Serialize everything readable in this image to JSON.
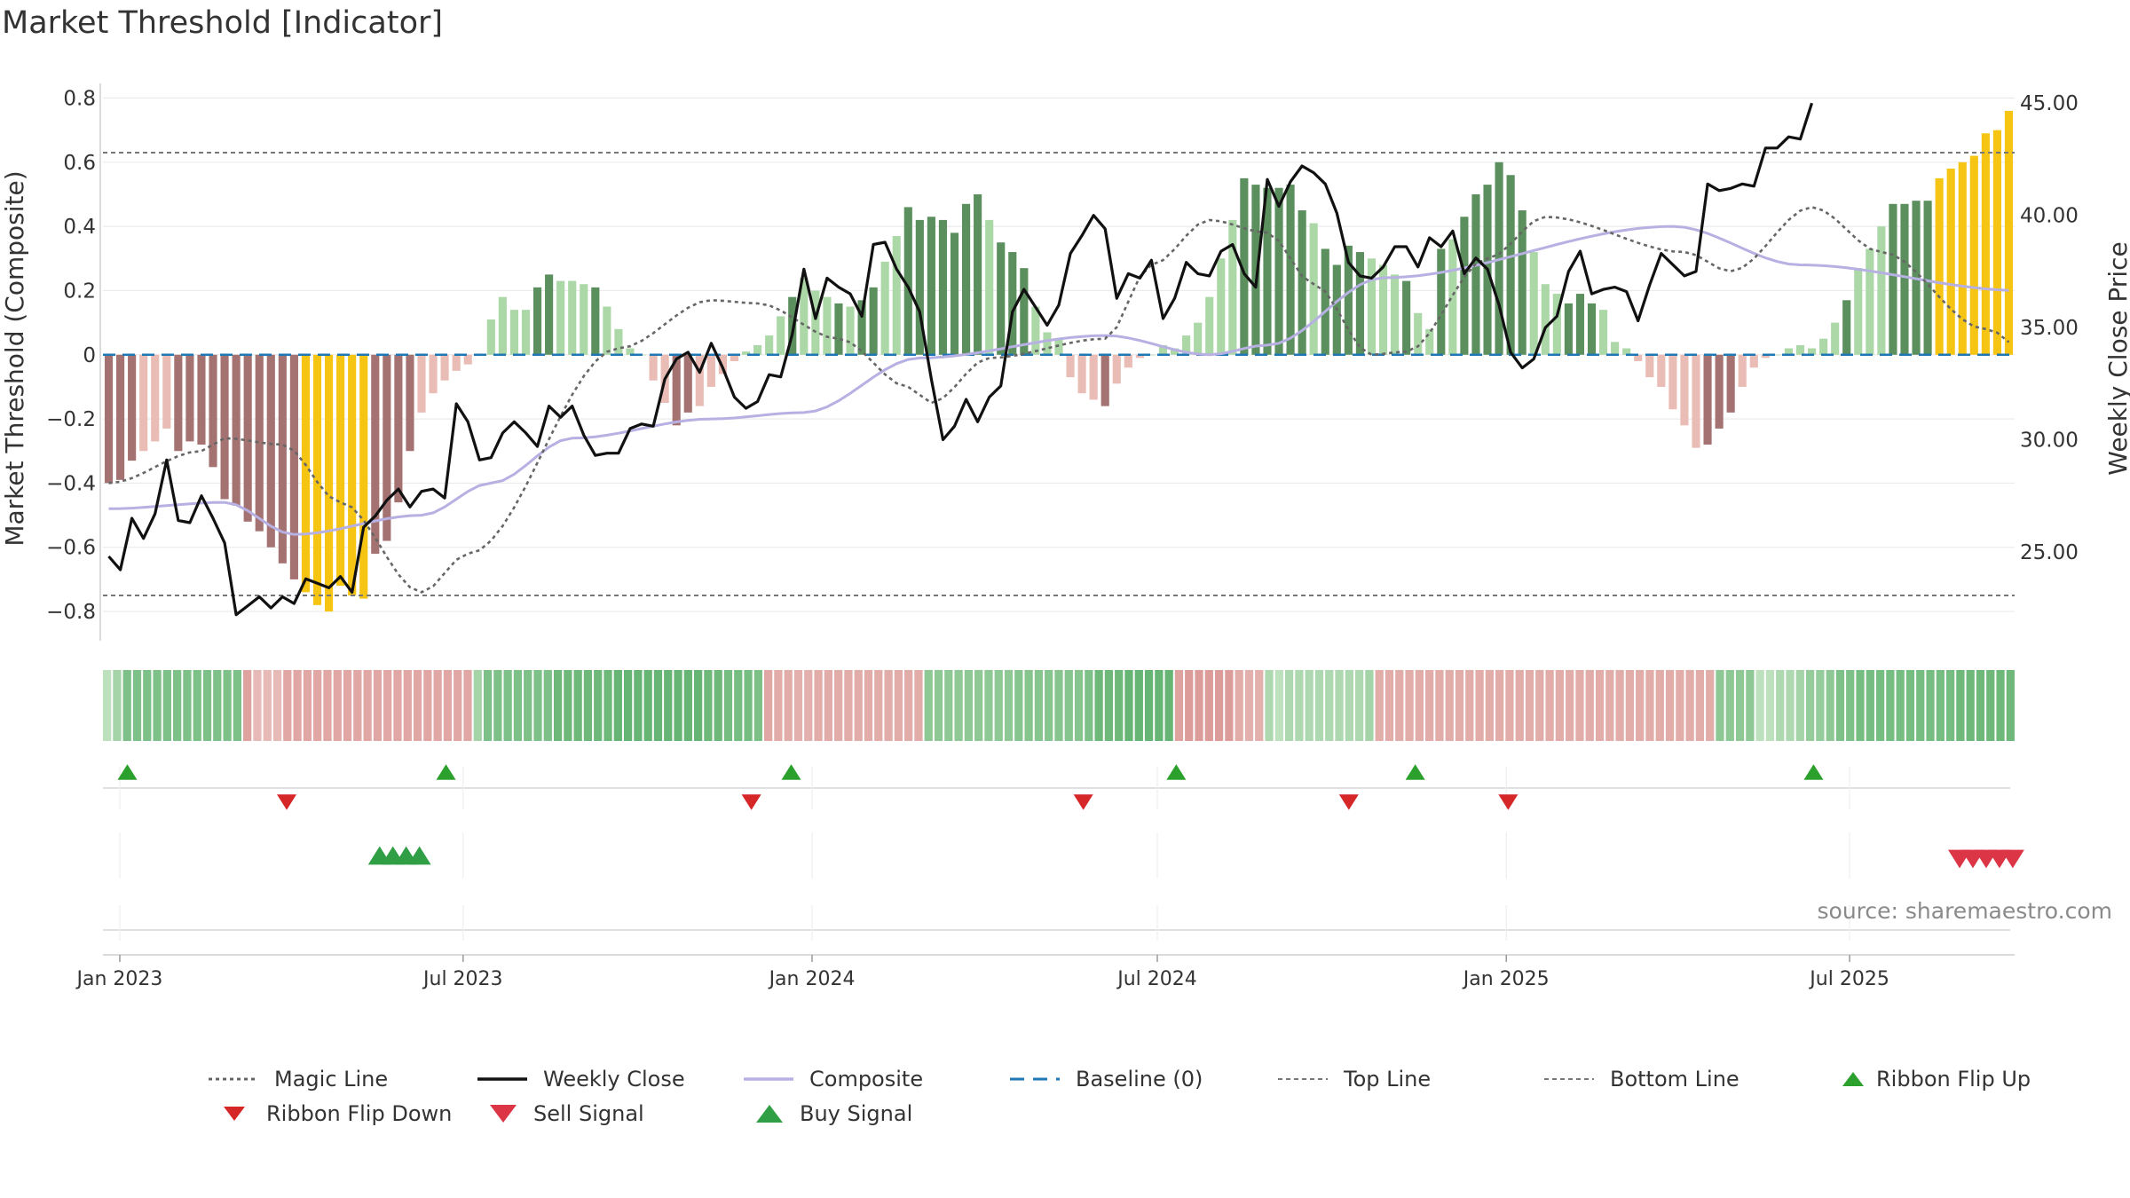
{
  "title": "Market Threshold [Indicator]",
  "source": "source: sharemaestro.com",
  "colors": {
    "posStrong": "#5b8f5d",
    "posWeak": "#acd8a8",
    "negStrong": "#a57272",
    "negWeak": "#e9bcb6",
    "extreme": "#f6c514",
    "closeLine": "#111111",
    "composite": "#b7b0e2",
    "magic": "#666666",
    "baseline": "#1f77b4",
    "threshold": "#777777",
    "buy": "#2ca02c",
    "sell": "#d62728"
  },
  "chart_data": {
    "type": "bar+line",
    "title": "Market Threshold [Indicator]",
    "ylabel": "Market Threshold (Composite)",
    "y2label": "Weekly Close Price",
    "ylim": [
      -0.88,
      0.84
    ],
    "y2lim": [
      21.2,
      45.8
    ],
    "yticks": [
      0.8,
      0.6,
      0.4,
      0.2,
      0,
      -0.2,
      -0.4,
      -0.6,
      -0.8
    ],
    "ytick_labels": [
      "0.8",
      "0.6",
      "0.4",
      "0.2",
      "0",
      "−0.2",
      "−0.4",
      "−0.6",
      "−0.8"
    ],
    "y2ticks": [
      45,
      40,
      35,
      30,
      25
    ],
    "y2tick_labels": [
      "45.00",
      "40.00",
      "35.00",
      "30.00",
      "25.00"
    ],
    "x_start": "2022-12-25",
    "x_end": "2025-09-26",
    "xticks": [
      {
        "date": "2023-01-01",
        "label": "Jan 2023"
      },
      {
        "date": "2023-07-01",
        "label": "Jul 2023"
      },
      {
        "date": "2024-01-01",
        "label": "Jan 2024"
      },
      {
        "date": "2024-07-01",
        "label": "Jul 2024"
      },
      {
        "date": "2025-01-01",
        "label": "Jan 2025"
      },
      {
        "date": "2025-07-01",
        "label": "Jul 2025"
      }
    ],
    "top_line": 0.63,
    "bottom_line": -0.75,
    "composite_keys": [
      [
        0,
        -0.48
      ],
      [
        10,
        -0.46
      ],
      [
        16,
        -0.56
      ],
      [
        27,
        -0.5
      ],
      [
        33,
        -0.4
      ],
      [
        40,
        -0.26
      ],
      [
        52,
        -0.2
      ],
      [
        60,
        -0.18
      ],
      [
        70,
        -0.01
      ],
      [
        86,
        0.06
      ],
      [
        95,
        0.0
      ],
      [
        100,
        0.03
      ],
      [
        110,
        0.24
      ],
      [
        135,
        0.4
      ],
      [
        146,
        0.28
      ],
      [
        165,
        0.2
      ],
      [
        175,
        0.18
      ],
      [
        190,
        0.42
      ]
    ],
    "magic_keys": [
      [
        0,
        -0.4
      ],
      [
        8,
        -0.3
      ],
      [
        10,
        -0.26
      ],
      [
        15,
        -0.28
      ],
      [
        20,
        -0.46
      ],
      [
        27,
        -0.74
      ],
      [
        31,
        -0.62
      ],
      [
        44,
        0.02
      ],
      [
        52,
        0.17
      ],
      [
        56,
        0.16
      ],
      [
        63,
        0.05
      ],
      [
        69,
        -0.1
      ],
      [
        71,
        -0.15
      ],
      [
        76,
        -0.01
      ],
      [
        86,
        0.05
      ],
      [
        90,
        0.28
      ],
      [
        95,
        0.42
      ],
      [
        100,
        0.38
      ],
      [
        104,
        0.22
      ],
      [
        109,
        0.0
      ],
      [
        112,
        0.01
      ],
      [
        119,
        0.3
      ],
      [
        124,
        0.43
      ],
      [
        136,
        0.32
      ],
      [
        140,
        0.26
      ],
      [
        147,
        0.46
      ],
      [
        153,
        0.32
      ],
      [
        162,
        0.08
      ],
      [
        170,
        -0.18
      ],
      [
        178,
        -0.02
      ],
      [
        184,
        0.02
      ],
      [
        190,
        0.43
      ],
      [
        196,
        0.62
      ]
    ],
    "series": [
      {
        "name": "Composite (bars)",
        "values": [
          -0.4,
          -0.39,
          -0.33,
          -0.3,
          -0.27,
          -0.23,
          -0.3,
          -0.27,
          -0.28,
          -0.35,
          -0.45,
          -0.47,
          -0.52,
          -0.55,
          -0.6,
          -0.65,
          -0.7,
          -0.74,
          -0.78,
          -0.8,
          -0.72,
          -0.75,
          -0.76,
          -0.62,
          -0.58,
          -0.46,
          -0.3,
          -0.18,
          -0.12,
          -0.08,
          -0.05,
          -0.03,
          0.0,
          0.11,
          0.18,
          0.14,
          0.14,
          0.21,
          0.25,
          0.23,
          0.23,
          0.22,
          0.21,
          0.15,
          0.08,
          0.02,
          0.0,
          -0.08,
          -0.15,
          -0.22,
          -0.18,
          -0.16,
          -0.1,
          -0.06,
          -0.02,
          0.01,
          0.03,
          0.06,
          0.12,
          0.18,
          0.24,
          0.2,
          0.18,
          0.16,
          0.15,
          0.17,
          0.21,
          0.29,
          0.37,
          0.46,
          0.42,
          0.43,
          0.42,
          0.38,
          0.47,
          0.5,
          0.42,
          0.35,
          0.32,
          0.27,
          0.15,
          0.07,
          0.05,
          -0.07,
          -0.12,
          -0.14,
          -0.16,
          -0.09,
          -0.04,
          -0.01,
          0.0,
          0.03,
          0.02,
          0.06,
          0.1,
          0.18,
          0.3,
          0.42,
          0.55,
          0.53,
          0.52,
          0.52,
          0.53,
          0.45,
          0.41,
          0.33,
          0.28,
          0.34,
          0.32,
          0.3,
          0.28,
          0.25,
          0.23,
          0.13,
          0.08,
          0.33,
          0.36,
          0.43,
          0.5,
          0.53,
          0.6,
          0.56,
          0.45,
          0.32,
          0.22,
          0.19,
          0.16,
          0.19,
          0.16,
          0.14,
          0.04,
          0.02,
          -0.02,
          -0.07,
          -0.1,
          -0.17,
          -0.22,
          -0.29,
          -0.28,
          -0.23,
          -0.18,
          -0.1,
          -0.04,
          -0.01,
          0.0,
          0.02,
          0.03,
          0.02,
          0.05,
          0.1,
          0.17,
          0.27,
          0.33,
          0.4,
          0.47,
          0.47,
          0.48,
          0.48,
          0.55,
          0.58,
          0.6,
          0.62,
          0.69,
          0.7,
          0.76
        ]
      },
      {
        "name": "Weekly Close",
        "values": [
          24.8,
          24.2,
          26.5,
          25.6,
          26.7,
          29.1,
          26.4,
          26.3,
          27.5,
          26.5,
          25.4,
          22.2,
          22.6,
          23.0,
          22.5,
          23.0,
          22.7,
          23.8,
          23.6,
          23.4,
          23.9,
          23.2,
          26.1,
          26.6,
          27.3,
          27.8,
          27.0,
          27.7,
          27.8,
          27.4,
          31.6,
          30.8,
          29.1,
          29.2,
          30.3,
          30.8,
          30.3,
          29.7,
          31.5,
          31.0,
          31.5,
          30.2,
          29.3,
          29.4,
          29.4,
          30.5,
          30.7,
          30.6,
          32.7,
          33.6,
          33.9,
          33.0,
          34.3,
          33.2,
          31.9,
          31.4,
          31.7,
          32.9,
          32.8,
          34.7,
          37.6,
          35.4,
          37.2,
          36.8,
          36.5,
          35.5,
          38.7,
          38.8,
          37.6,
          36.8,
          35.7,
          32.7,
          30.0,
          30.6,
          31.8,
          30.8,
          31.9,
          32.4,
          35.7,
          36.7,
          35.9,
          35.1,
          36.0,
          38.3,
          39.1,
          40.0,
          39.4,
          36.3,
          37.4,
          37.2,
          38.0,
          35.4,
          36.3,
          37.9,
          37.4,
          37.3,
          38.4,
          38.7,
          37.4,
          36.8,
          41.6,
          40.4,
          41.5,
          42.2,
          41.9,
          41.4,
          40.1,
          37.9,
          37.3,
          37.2,
          37.7,
          38.6,
          38.6,
          37.7,
          39.0,
          38.6,
          39.3,
          37.4,
          38.1,
          37.6,
          36.0,
          33.9,
          33.2,
          33.6,
          35.0,
          35.5,
          37.5,
          38.4,
          36.5,
          36.7,
          36.8,
          36.6,
          35.3,
          36.9,
          38.3,
          37.8,
          37.3,
          37.5,
          41.4,
          41.1,
          41.2,
          41.4,
          41.3,
          43.0,
          43.0,
          43.5,
          43.4,
          45.0
        ]
      },
      {
        "name": "Consensus Ribbon",
        "values": [
          0.2,
          0.35,
          0.6,
          0.6,
          0.6,
          0.6,
          0.6,
          0.6,
          0.6,
          0.6,
          0.6,
          0.6,
          0.6,
          0.6,
          0.6,
          0.35,
          0.35,
          0.35,
          0.55,
          0.55,
          0.55,
          0.55,
          0.55,
          0.55,
          0.55,
          0.55,
          0.55,
          0.55,
          0.55,
          0.55,
          0.55,
          0.55,
          0.55,
          0.55,
          0.55,
          0.55,
          0.55,
          0.35,
          0.6,
          0.6,
          0.6,
          0.6,
          0.6,
          0.6,
          0.6,
          0.7,
          0.7,
          0.7,
          0.7,
          0.7,
          0.7,
          0.75,
          0.75,
          0.75,
          0.75,
          0.75,
          0.75,
          0.75,
          0.75,
          0.75,
          0.7,
          0.7,
          0.65,
          0.65,
          0.65,
          0.6,
          0.55,
          0.5,
          0.5,
          0.45,
          0.45,
          0.5,
          0.5,
          0.5,
          0.5,
          0.5,
          0.5,
          0.5,
          0.5,
          0.5,
          0.5,
          0.5,
          0.5,
          0.5,
          0.5,
          0.5,
          0.5,
          0.5,
          0.5,
          0.5,
          0.5,
          0.55,
          0.55,
          0.55,
          0.55,
          0.55,
          0.55,
          0.55,
          0.6,
          0.7,
          0.7,
          0.7,
          0.75,
          0.75,
          0.75,
          0.75,
          0.75,
          0.6,
          0.65,
          0.65,
          0.65,
          0.65,
          0.65,
          0.5,
          0.45,
          0.45,
          0.3,
          0.2,
          0.3,
          0.3,
          0.3,
          0.3,
          0.3,
          0.3,
          0.3,
          0.3,
          0.35,
          0.5,
          0.5,
          0.5,
          0.5,
          0.5,
          0.5,
          0.5,
          0.5,
          0.5,
          0.5,
          0.5,
          0.5,
          0.5,
          0.5,
          0.5,
          0.5,
          0.5,
          0.5,
          0.5,
          0.5,
          0.5,
          0.5,
          0.5,
          0.5,
          0.5,
          0.5,
          0.5,
          0.5,
          0.5,
          0.5,
          0.5,
          0.5,
          0.5,
          0.5,
          0.5,
          0.5,
          0.5,
          0.5,
          0.2,
          0.2,
          0.3,
          0.3,
          0.35,
          0.45,
          0.45,
          0.5,
          0.6,
          0.6,
          0.65,
          0.65,
          0.65,
          0.65,
          0.65,
          0.65,
          0.65,
          0.65,
          0.65,
          0.65,
          0.7,
          0.7,
          0.7,
          0.7,
          0.7,
          0.7
        ]
      }
    ],
    "ribbon_flip_up": [
      "2023-01-05",
      "2023-06-22",
      "2023-12-21",
      "2024-07-11",
      "2024-11-14",
      "2025-06-12"
    ],
    "ribbon_flip_down": [
      "2023-03-30",
      "2023-11-30",
      "2024-05-23",
      "2024-10-10",
      "2025-01-02"
    ],
    "buy_signal": [
      "2023-05-18",
      "2023-05-25",
      "2023-06-01",
      "2023-06-08"
    ],
    "sell_signal": [
      "2025-08-28",
      "2025-09-04",
      "2025-09-11",
      "2025-09-18",
      "2025-09-25"
    ],
    "legend": [
      {
        "key": "magic",
        "label": "Magic Line"
      },
      {
        "key": "close",
        "label": "Weekly Close"
      },
      {
        "key": "composite",
        "label": "Composite"
      },
      {
        "key": "baseline",
        "label": "Baseline (0)"
      },
      {
        "key": "top",
        "label": "Top Line"
      },
      {
        "key": "bottom",
        "label": "Bottom Line"
      },
      {
        "key": "flipup",
        "label": "Ribbon Flip Up"
      },
      {
        "key": "flipdown",
        "label": "Ribbon Flip Down"
      },
      {
        "key": "sell",
        "label": "Sell Signal"
      },
      {
        "key": "buy",
        "label": "Buy Signal"
      }
    ]
  }
}
